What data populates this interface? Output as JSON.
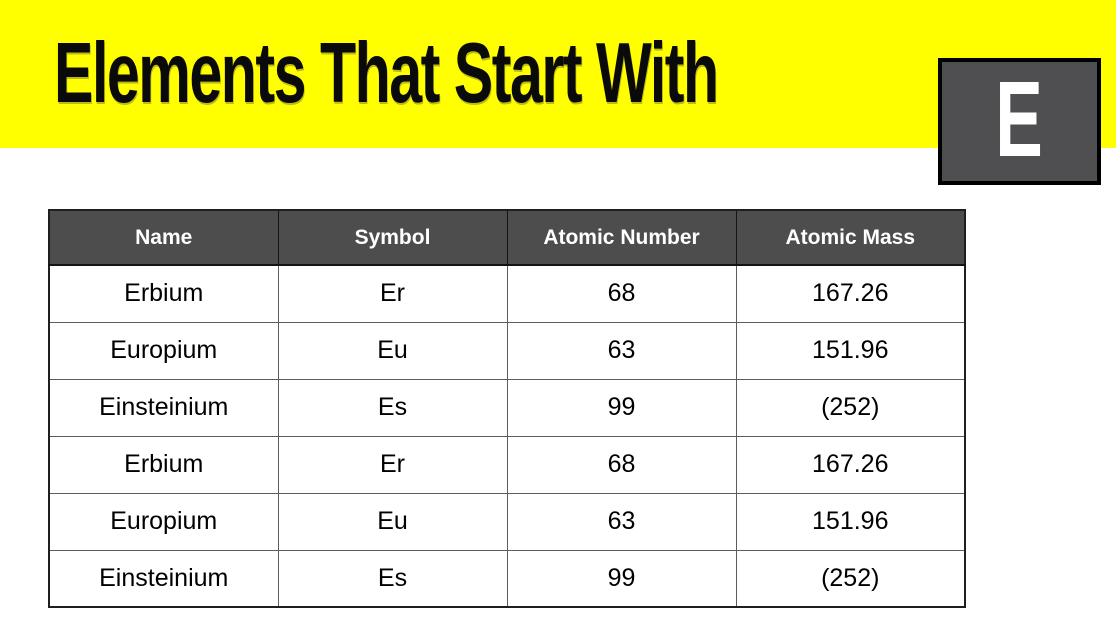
{
  "header": {
    "title": "Elements That Start With",
    "letter": "E",
    "colors": {
      "banner_bg": "#ffff00",
      "title_text": "#0a0a0a",
      "badge_bg": "#4f4f51",
      "badge_border": "#000000",
      "badge_letter": "#ffffff"
    }
  },
  "table": {
    "colors": {
      "header_bg": "#4d4d4d",
      "header_text": "#ffffff",
      "body_bg": "#ffffff",
      "body_text": "#000000"
    },
    "columns": [
      "Name",
      "Symbol",
      "Atomic Number",
      "Atomic Mass"
    ],
    "rows": [
      [
        "Erbium",
        "Er",
        "68",
        "167.26"
      ],
      [
        "Europium",
        "Eu",
        "63",
        "151.96"
      ],
      [
        "Einsteinium",
        "Es",
        "99",
        "(252)"
      ],
      [
        "Erbium",
        "Er",
        "68",
        "167.26"
      ],
      [
        "Europium",
        "Eu",
        "63",
        "151.96"
      ],
      [
        "Einsteinium",
        "Es",
        "99",
        "(252)"
      ]
    ]
  }
}
